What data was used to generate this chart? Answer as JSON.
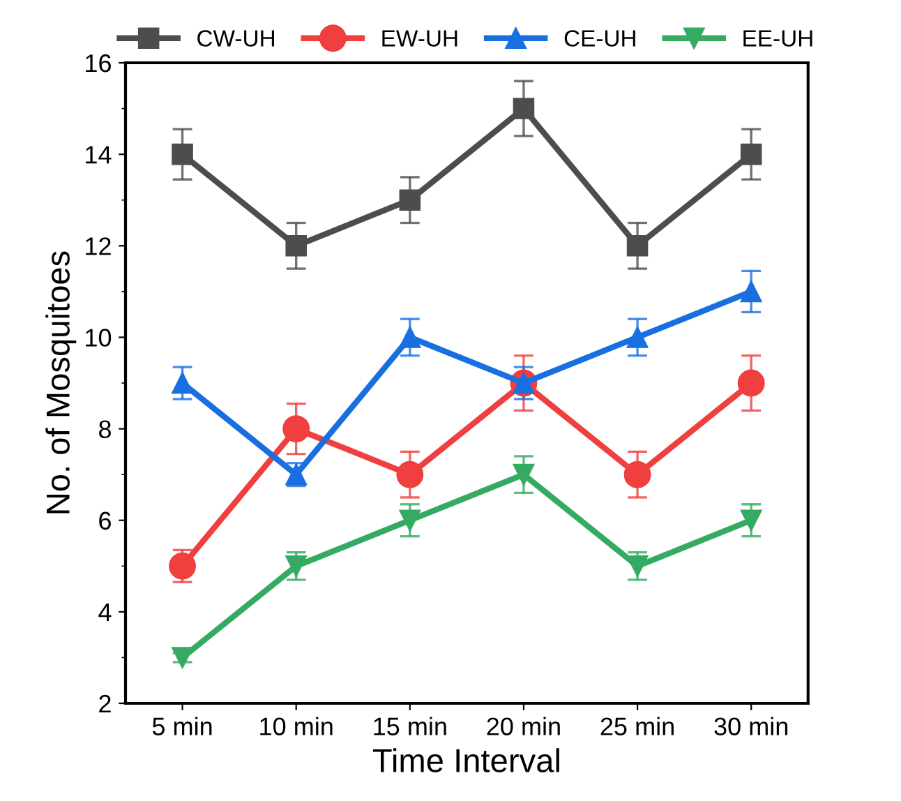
{
  "chart_data": {
    "type": "line",
    "xlabel": "Time Interval",
    "ylabel": "No. of Mosquitoes",
    "categories": [
      "5 min",
      "10 min",
      "15 min",
      "20 min",
      "25 min",
      "30 min"
    ],
    "series": [
      {
        "name": "CW-UH",
        "color": "#4d4d4d",
        "marker": "square",
        "values": [
          14,
          12,
          13,
          15,
          12,
          14
        ],
        "errors": [
          0.55,
          0.5,
          0.5,
          0.6,
          0.5,
          0.55
        ]
      },
      {
        "name": "EW-UH",
        "color": "#ef3f3f",
        "marker": "circle",
        "values": [
          5,
          8,
          7,
          9,
          7,
          9
        ],
        "errors": [
          0.35,
          0.55,
          0.5,
          0.6,
          0.5,
          0.6
        ]
      },
      {
        "name": "CE-UH",
        "color": "#1a6fe0",
        "marker": "triangle",
        "values": [
          9,
          7,
          10,
          9,
          10,
          11
        ],
        "errors": [
          0.35,
          0.25,
          0.4,
          0.35,
          0.4,
          0.45
        ]
      },
      {
        "name": "EE-UH",
        "color": "#35aa62",
        "marker": "triangle_down",
        "values": [
          3,
          5,
          6,
          7,
          5,
          6
        ],
        "errors": [
          0.1,
          0.3,
          0.35,
          0.4,
          0.3,
          0.35
        ]
      }
    ],
    "ylim": [
      2,
      16
    ],
    "yticks": [
      2,
      4,
      6,
      8,
      10,
      12,
      14,
      16
    ],
    "grid": false,
    "legend": "top",
    "line_style": "solid"
  }
}
